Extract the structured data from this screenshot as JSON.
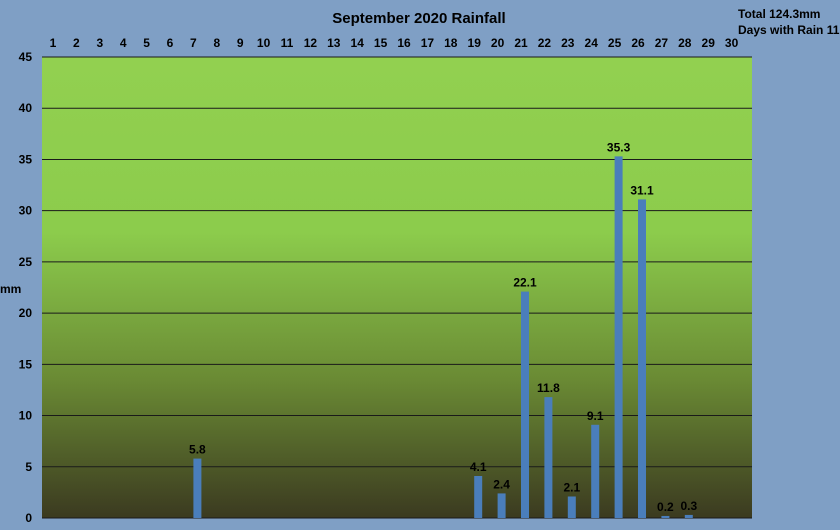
{
  "chart_data": {
    "type": "bar",
    "title": "September 2020 Rainfall",
    "total_label": "Total 124.3mm",
    "days_label": "Days with Rain 11",
    "ylabel": "mm",
    "ylim": [
      0,
      45
    ],
    "yticks": [
      0,
      5,
      10,
      15,
      20,
      25,
      30,
      35,
      40,
      45
    ],
    "categories": [
      "1",
      "2",
      "3",
      "4",
      "5",
      "6",
      "7",
      "8",
      "9",
      "10",
      "11",
      "12",
      "13",
      "14",
      "15",
      "16",
      "17",
      "18",
      "19",
      "20",
      "21",
      "22",
      "23",
      "24",
      "25",
      "26",
      "27",
      "28",
      "29",
      "30"
    ],
    "values": [
      0,
      0,
      0,
      0,
      0,
      0,
      5.8,
      0,
      0,
      0,
      0,
      0,
      0,
      0,
      0,
      0,
      0,
      0,
      4.1,
      2.4,
      22.1,
      11.8,
      2.1,
      9.1,
      35.3,
      31.1,
      0.2,
      0.3,
      0,
      0
    ],
    "data_labels": [
      "",
      "",
      "",
      "",
      "",
      "",
      "5.8",
      "",
      "",
      "",
      "",
      "",
      "",
      "",
      "",
      "",
      "",
      "",
      "4.1",
      "2.4",
      "22.1",
      "11.8",
      "2.1",
      "9.1",
      "35.3",
      "31.1",
      "0.2",
      "0.3",
      "",
      ""
    ],
    "x_axis_position": "top",
    "grid": true,
    "colors": {
      "background": "#7f9fc5",
      "plot_top": "#92d050",
      "plot_bottom": "#3b3a20",
      "bar": "#4a7ebb",
      "grid": "#1a1a1a"
    }
  }
}
